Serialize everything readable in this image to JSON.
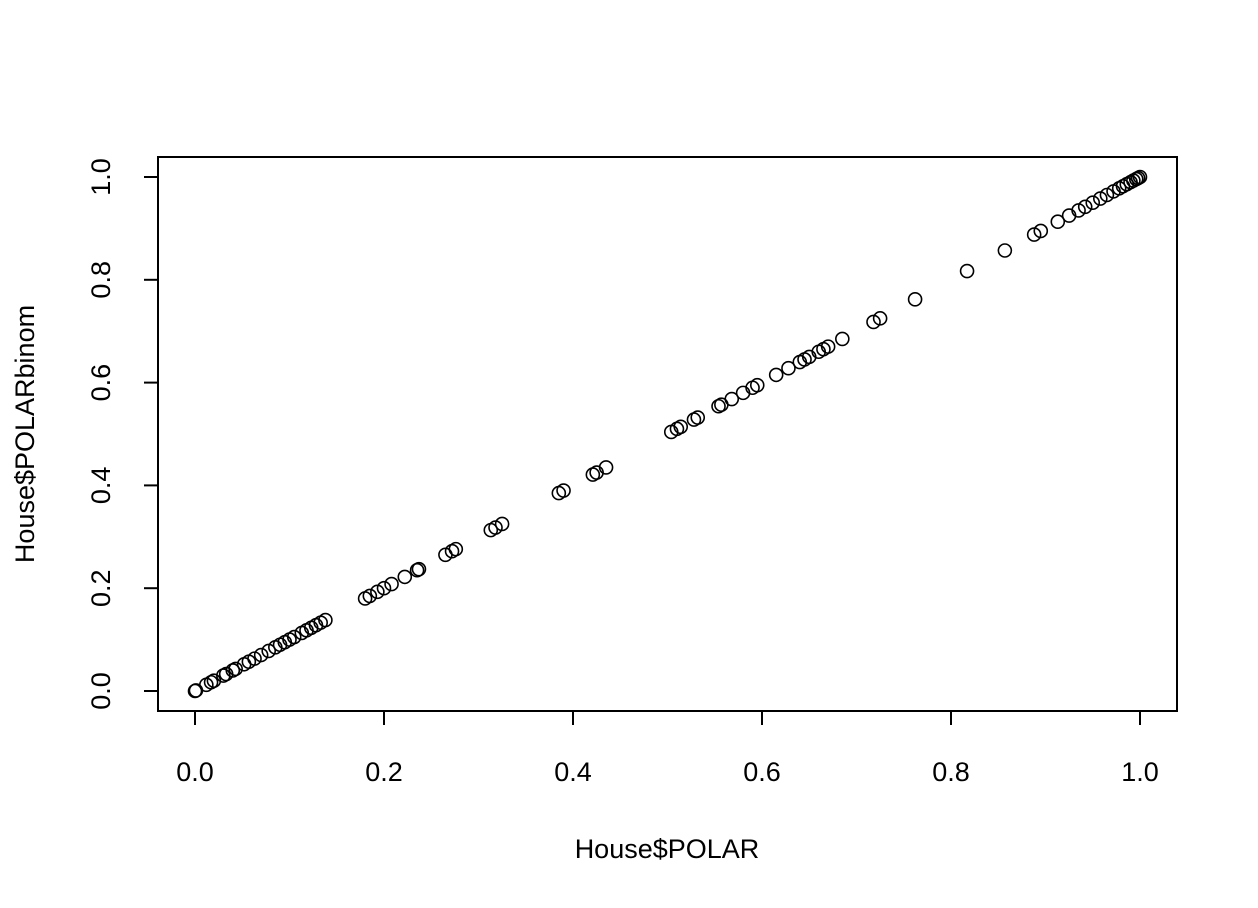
{
  "chart_data": {
    "type": "scatter",
    "title": "",
    "xlabel": "House$POLAR",
    "ylabel": "House$POLARbinom",
    "xlim": [
      0.0,
      1.0
    ],
    "ylim": [
      0.0,
      1.0
    ],
    "xticks": [
      "0.0",
      "0.2",
      "0.4",
      "0.6",
      "0.8",
      "1.0"
    ],
    "yticks": [
      "0.0",
      "0.2",
      "0.4",
      "0.6",
      "0.8",
      "1.0"
    ],
    "grid": false,
    "legend": "none",
    "marker": "open-circle",
    "x": [
      0.0,
      0.001,
      0.012,
      0.017,
      0.02,
      0.03,
      0.033,
      0.04,
      0.043,
      0.052,
      0.057,
      0.063,
      0.07,
      0.078,
      0.085,
      0.09,
      0.095,
      0.1,
      0.105,
      0.113,
      0.118,
      0.123,
      0.128,
      0.133,
      0.138,
      0.18,
      0.185,
      0.193,
      0.2,
      0.208,
      0.222,
      0.235,
      0.237,
      0.265,
      0.272,
      0.276,
      0.313,
      0.318,
      0.325,
      0.385,
      0.39,
      0.421,
      0.425,
      0.435,
      0.504,
      0.51,
      0.514,
      0.528,
      0.532,
      0.554,
      0.557,
      0.568,
      0.58,
      0.59,
      0.595,
      0.615,
      0.628,
      0.64,
      0.645,
      0.65,
      0.66,
      0.665,
      0.67,
      0.685,
      0.718,
      0.725,
      0.762,
      0.817,
      0.857,
      0.888,
      0.895,
      0.913,
      0.925,
      0.935,
      0.942,
      0.95,
      0.958,
      0.965,
      0.972,
      0.978,
      0.982,
      0.986,
      0.99,
      0.993,
      0.996,
      0.998,
      1.0
    ],
    "y": [
      0.0,
      0.001,
      0.012,
      0.017,
      0.02,
      0.03,
      0.033,
      0.04,
      0.043,
      0.052,
      0.057,
      0.063,
      0.07,
      0.078,
      0.085,
      0.09,
      0.095,
      0.1,
      0.105,
      0.113,
      0.118,
      0.123,
      0.128,
      0.133,
      0.138,
      0.18,
      0.185,
      0.193,
      0.2,
      0.208,
      0.222,
      0.235,
      0.237,
      0.265,
      0.272,
      0.276,
      0.313,
      0.318,
      0.325,
      0.385,
      0.39,
      0.421,
      0.425,
      0.435,
      0.504,
      0.51,
      0.514,
      0.528,
      0.532,
      0.554,
      0.557,
      0.568,
      0.58,
      0.59,
      0.595,
      0.615,
      0.628,
      0.64,
      0.645,
      0.65,
      0.66,
      0.665,
      0.67,
      0.685,
      0.718,
      0.725,
      0.762,
      0.817,
      0.857,
      0.888,
      0.895,
      0.913,
      0.925,
      0.935,
      0.942,
      0.95,
      0.958,
      0.965,
      0.972,
      0.978,
      0.982,
      0.986,
      0.99,
      0.993,
      0.996,
      0.998,
      1.0
    ],
    "colors": {
      "marker": "#000000",
      "frame": "#000000",
      "background": "#ffffff"
    }
  }
}
